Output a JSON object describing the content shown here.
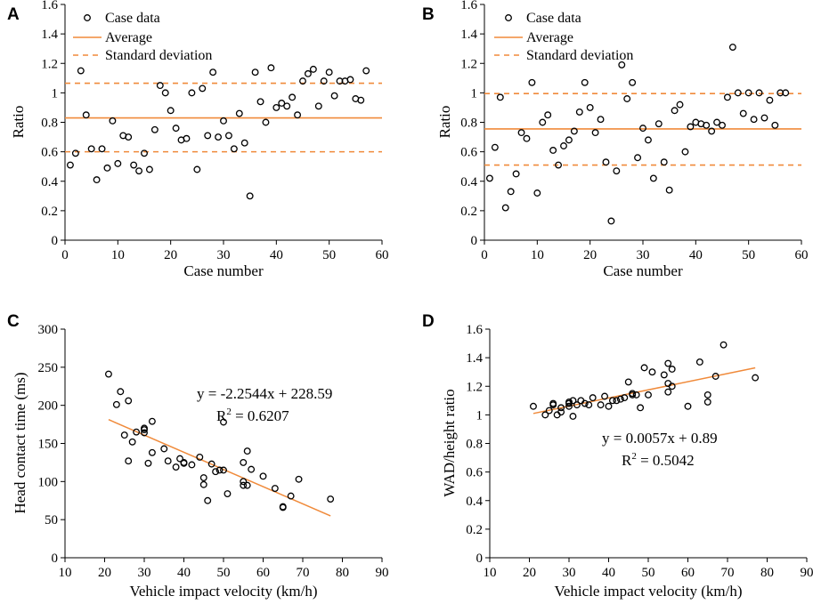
{
  "colors": {
    "accent": "#F08A3A",
    "marker": "#000000"
  },
  "chart_data": [
    {
      "panel": "A",
      "type": "scatter",
      "xlabel": "Case number",
      "ylabel": "Ratio",
      "xlim": [
        0,
        60
      ],
      "ylim": [
        0,
        1.6
      ],
      "xticks": [
        0,
        10,
        20,
        30,
        40,
        50,
        60
      ],
      "yticks": [
        0,
        0.2,
        0.4,
        0.6,
        0.8,
        1,
        1.2,
        1.4,
        1.6
      ],
      "xtick_labels": [
        "0",
        "10",
        "20",
        "30",
        "40",
        "50",
        "60"
      ],
      "ytick_labels": [
        "0",
        "0.2",
        "0.4",
        "0.6",
        "0.8",
        "1",
        "1.2",
        "1.4",
        "1.6"
      ],
      "legend": {
        "position": "top-left",
        "entries": [
          "Case data",
          "Average",
          "Standard deviation"
        ]
      },
      "average": 0.83,
      "std_band": [
        0.6,
        1.065
      ],
      "x": [
        1,
        2,
        3,
        4,
        5,
        6,
        7,
        8,
        9,
        10,
        11,
        12,
        13,
        14,
        15,
        16,
        17,
        18,
        19,
        20,
        21,
        22,
        23,
        24,
        25,
        26,
        27,
        28,
        29,
        30,
        31,
        32,
        33,
        34,
        35,
        36,
        37,
        38,
        39,
        40,
        41,
        42,
        43,
        44,
        45,
        46,
        47,
        48,
        49,
        50,
        51,
        52,
        53,
        54,
        55,
        56,
        57
      ],
      "y": [
        0.51,
        0.59,
        1.15,
        0.85,
        0.62,
        0.41,
        0.62,
        0.49,
        0.81,
        0.52,
        0.71,
        0.7,
        0.51,
        0.47,
        0.59,
        0.48,
        0.75,
        1.05,
        1.0,
        0.88,
        0.76,
        0.68,
        0.69,
        1.0,
        0.48,
        1.03,
        0.71,
        1.14,
        0.7,
        0.81,
        0.71,
        0.62,
        0.86,
        0.66,
        0.3,
        1.14,
        0.94,
        0.8,
        1.17,
        0.9,
        0.93,
        0.91,
        0.97,
        0.85,
        1.08,
        1.13,
        1.16,
        0.91,
        1.08,
        1.14,
        0.98,
        1.08,
        1.08,
        1.09,
        0.96,
        0.95,
        1.15
      ]
    },
    {
      "panel": "B",
      "type": "scatter",
      "xlabel": "Case number",
      "ylabel": "Ratio",
      "xlim": [
        0,
        60
      ],
      "ylim": [
        0,
        1.6
      ],
      "xticks": [
        0,
        10,
        20,
        30,
        40,
        50,
        60
      ],
      "yticks": [
        0,
        0.2,
        0.4,
        0.6,
        0.8,
        1,
        1.2,
        1.4,
        1.6
      ],
      "xtick_labels": [
        "0",
        "10",
        "20",
        "30",
        "40",
        "50",
        "60"
      ],
      "ytick_labels": [
        "0",
        "0.2",
        "0.4",
        "0.6",
        "0.8",
        "1",
        "1.2",
        "1.4",
        "1.6"
      ],
      "legend": {
        "position": "top-left",
        "entries": [
          "Case data",
          "Average",
          "Standard deviation"
        ]
      },
      "average": 0.755,
      "std_band": [
        0.51,
        0.995
      ],
      "x": [
        1,
        2,
        3,
        4,
        5,
        6,
        7,
        8,
        9,
        10,
        11,
        12,
        13,
        14,
        15,
        16,
        17,
        18,
        19,
        20,
        21,
        22,
        23,
        24,
        25,
        26,
        27,
        28,
        29,
        30,
        31,
        32,
        33,
        34,
        35,
        36,
        37,
        38,
        39,
        40,
        41,
        42,
        43,
        44,
        45,
        46,
        47,
        48,
        49,
        50,
        51,
        52,
        53,
        54,
        55,
        56,
        57
      ],
      "y": [
        0.42,
        0.63,
        0.97,
        0.22,
        0.33,
        0.45,
        0.73,
        0.69,
        1.07,
        0.32,
        0.8,
        0.85,
        0.61,
        0.51,
        0.64,
        0.68,
        0.74,
        0.87,
        1.07,
        0.9,
        0.73,
        0.82,
        0.53,
        0.13,
        0.47,
        1.19,
        0.96,
        1.07,
        0.56,
        0.76,
        0.68,
        0.42,
        0.79,
        0.53,
        0.34,
        0.88,
        0.92,
        0.6,
        0.77,
        0.8,
        0.79,
        0.78,
        0.74,
        0.8,
        0.78,
        0.97,
        1.31,
        1.0,
        0.86,
        1.0,
        0.82,
        1.0,
        0.83,
        0.95,
        0.78,
        1.0,
        1.0
      ]
    },
    {
      "panel": "C",
      "type": "scatter",
      "xlabel": "Vehicle impact velocity (km/h)",
      "ylabel": "Head contact time (ms)",
      "xlim": [
        10,
        90
      ],
      "ylim": [
        0,
        300
      ],
      "xticks": [
        10,
        20,
        30,
        40,
        50,
        60,
        70,
        80,
        90
      ],
      "yticks": [
        0,
        50,
        100,
        150,
        200,
        250,
        300
      ],
      "xtick_labels": [
        "10",
        "20",
        "30",
        "40",
        "50",
        "60",
        "70",
        "80",
        "90"
      ],
      "ytick_labels": [
        "0",
        "50",
        "100",
        "150",
        "200",
        "250",
        "300"
      ],
      "equation": "y = -2.2544x + 228.59",
      "r2_label": "R",
      "r2_sup": "2",
      "r2_value": " = 0.6207",
      "trend": {
        "slope": -2.2544,
        "intercept": 228.59,
        "x_range": [
          21,
          77
        ]
      },
      "x": [
        21,
        23,
        24,
        25,
        26,
        26,
        27,
        28,
        30,
        30,
        30,
        31,
        32,
        32,
        35,
        36,
        38,
        39,
        40,
        40,
        42,
        44,
        45,
        45,
        46,
        47,
        48,
        49,
        50,
        50,
        51,
        55,
        55,
        55,
        56,
        56,
        57,
        60,
        63,
        65,
        65,
        67,
        69,
        77
      ],
      "y": [
        241,
        201,
        218,
        161,
        127,
        206,
        152,
        165,
        170,
        168,
        164,
        124,
        179,
        138,
        143,
        127,
        119,
        130,
        125,
        124,
        122,
        132,
        105,
        96,
        75,
        123,
        113,
        115,
        115,
        178,
        84,
        125,
        100,
        95,
        95,
        140,
        116,
        107,
        91,
        66,
        67,
        81,
        103,
        77
      ]
    },
    {
      "panel": "D",
      "type": "scatter",
      "xlabel": "Vehicle impact velocity (km/h)",
      "ylabel": "WAD/height ratio",
      "xlim": [
        10,
        90
      ],
      "ylim": [
        0,
        1.6
      ],
      "xticks": [
        10,
        20,
        30,
        40,
        50,
        60,
        70,
        80,
        90
      ],
      "yticks": [
        0,
        0.2,
        0.4,
        0.6,
        0.8,
        1,
        1.2,
        1.4,
        1.6
      ],
      "xtick_labels": [
        "10",
        "20",
        "30",
        "40",
        "50",
        "60",
        "70",
        "80",
        "90"
      ],
      "ytick_labels": [
        "0",
        "0.2",
        "0.4",
        "0.6",
        "0.8",
        "1",
        "1.2",
        "1.4",
        "1.6"
      ],
      "equation": "y = 0.0057x + 0.89",
      "r2_label": "R",
      "r2_sup": "2",
      "r2_value": " = 0.5042",
      "trend": {
        "slope": 0.0057,
        "intercept": 0.89,
        "x_range": [
          21,
          77
        ]
      },
      "x": [
        21,
        24,
        25,
        26,
        26,
        27,
        28,
        28,
        30,
        30,
        30,
        31,
        31,
        32,
        33,
        34,
        35,
        36,
        38,
        39,
        40,
        41,
        42,
        43,
        44,
        45,
        46,
        46,
        47,
        48,
        49,
        50,
        51,
        54,
        55,
        55,
        55,
        56,
        56,
        60,
        63,
        65,
        65,
        67,
        69,
        77
      ],
      "y": [
        1.06,
        1.0,
        1.03,
        1.08,
        1.07,
        1.0,
        1.02,
        1.05,
        1.09,
        1.08,
        1.06,
        0.99,
        1.1,
        1.07,
        1.1,
        1.08,
        1.07,
        1.12,
        1.07,
        1.13,
        1.06,
        1.1,
        1.1,
        1.11,
        1.12,
        1.23,
        1.14,
        1.15,
        1.14,
        1.05,
        1.33,
        1.14,
        1.3,
        1.28,
        1.36,
        1.22,
        1.16,
        1.2,
        1.32,
        1.06,
        1.37,
        1.14,
        1.09,
        1.27,
        1.49,
        1.26
      ]
    }
  ]
}
